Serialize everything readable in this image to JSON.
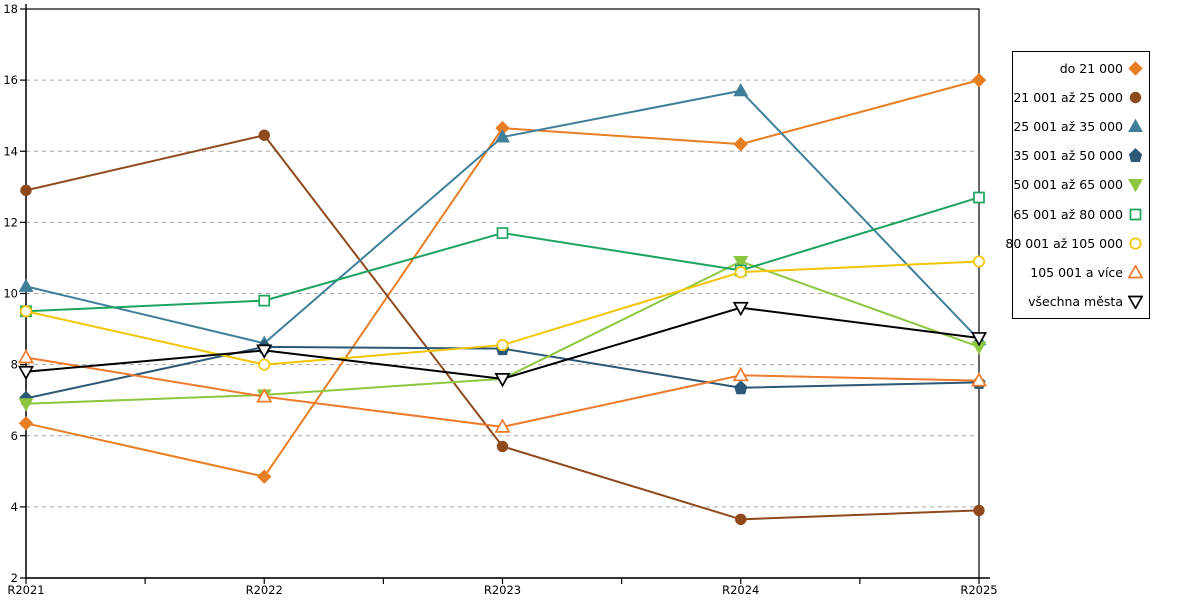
{
  "chart_data": {
    "type": "line",
    "title": "",
    "xlabel": "",
    "ylabel": "",
    "categories": [
      "R2021",
      "R2022",
      "R2023",
      "R2024",
      "R2025"
    ],
    "series": [
      {
        "name": "do 21 000",
        "color": "#E87E22",
        "marker": "diamond",
        "marker_fill": "solid",
        "values": [
          6.35,
          4.85,
          14.65,
          14.2,
          16.0
        ]
      },
      {
        "name": "21 001 až 25 000",
        "color": "#8E4A1C",
        "marker": "circle",
        "marker_fill": "solid",
        "values": [
          12.9,
          14.45,
          5.7,
          3.65,
          3.9
        ]
      },
      {
        "name": "25 001 až 35 000",
        "color": "#3F7F9A",
        "marker": "triangle-up",
        "marker_fill": "solid",
        "values": [
          10.2,
          8.6,
          14.4,
          15.7,
          8.7
        ]
      },
      {
        "name": "35 001 až 50 000",
        "color": "#2D5878",
        "marker": "pentagon",
        "marker_fill": "solid",
        "values": [
          7.05,
          8.5,
          8.45,
          7.35,
          7.5
        ]
      },
      {
        "name": "50 001 až 65 000",
        "color": "#8DC63F",
        "marker": "triangle-down",
        "marker_fill": "solid",
        "values": [
          6.9,
          7.15,
          7.6,
          10.9,
          8.5
        ]
      },
      {
        "name": "65 001 až 80 000",
        "color": "#1CA35F",
        "marker": "square",
        "marker_fill": "open",
        "values": [
          9.5,
          9.8,
          11.7,
          10.65,
          12.7
        ]
      },
      {
        "name": "80 001 až 105 000",
        "color": "#F2C500",
        "marker": "circle",
        "marker_fill": "open",
        "values": [
          9.5,
          8.0,
          8.55,
          10.6,
          10.9
        ]
      },
      {
        "name": "105 001 a více",
        "color": "#EE7A2C",
        "marker": "triangle-up",
        "marker_fill": "open",
        "values": [
          8.2,
          7.1,
          6.25,
          7.7,
          7.55
        ]
      },
      {
        "name": "všechna města",
        "color": "#000000",
        "marker": "triangle-down",
        "marker_fill": "open",
        "values": [
          7.8,
          8.4,
          7.6,
          9.6,
          8.75
        ]
      }
    ],
    "ylim": [
      2,
      18
    ],
    "yticks": [
      2,
      4,
      6,
      8,
      10,
      12,
      14,
      16,
      18
    ],
    "grid": "horizontal-dashed",
    "gridline_color": "#A6A6A6",
    "axis_color": "#000000",
    "legend_position": "right"
  }
}
